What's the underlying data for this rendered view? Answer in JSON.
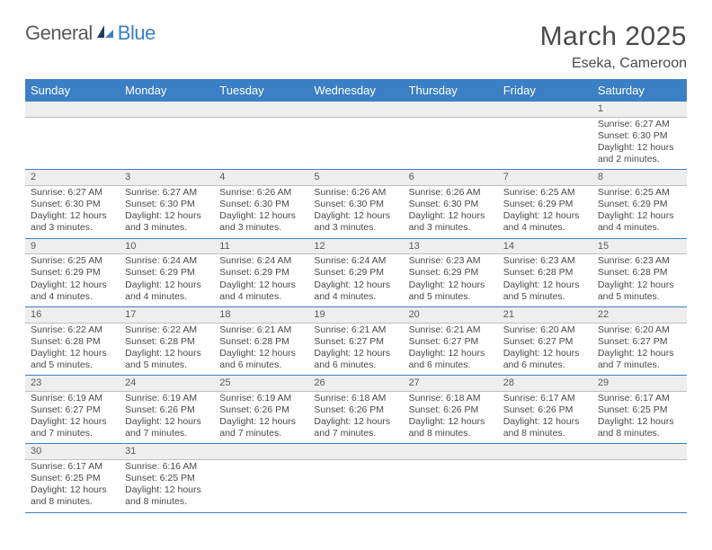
{
  "brand": {
    "general": "General",
    "blue": "Blue"
  },
  "title": "March 2025",
  "location": "Eseka, Cameroon",
  "header_bg": "#3b7fc4",
  "daynum_bg": "#eeeeee",
  "text_color": "#4a4a4a",
  "dayNames": [
    "Sunday",
    "Monday",
    "Tuesday",
    "Wednesday",
    "Thursday",
    "Friday",
    "Saturday"
  ],
  "weeks": [
    [
      null,
      null,
      null,
      null,
      null,
      null,
      {
        "n": "1",
        "sr": "6:27 AM",
        "ss": "6:30 PM",
        "dl": "12 hours and 2 minutes."
      }
    ],
    [
      {
        "n": "2",
        "sr": "6:27 AM",
        "ss": "6:30 PM",
        "dl": "12 hours and 3 minutes."
      },
      {
        "n": "3",
        "sr": "6:27 AM",
        "ss": "6:30 PM",
        "dl": "12 hours and 3 minutes."
      },
      {
        "n": "4",
        "sr": "6:26 AM",
        "ss": "6:30 PM",
        "dl": "12 hours and 3 minutes."
      },
      {
        "n": "5",
        "sr": "6:26 AM",
        "ss": "6:30 PM",
        "dl": "12 hours and 3 minutes."
      },
      {
        "n": "6",
        "sr": "6:26 AM",
        "ss": "6:30 PM",
        "dl": "12 hours and 3 minutes."
      },
      {
        "n": "7",
        "sr": "6:25 AM",
        "ss": "6:29 PM",
        "dl": "12 hours and 4 minutes."
      },
      {
        "n": "8",
        "sr": "6:25 AM",
        "ss": "6:29 PM",
        "dl": "12 hours and 4 minutes."
      }
    ],
    [
      {
        "n": "9",
        "sr": "6:25 AM",
        "ss": "6:29 PM",
        "dl": "12 hours and 4 minutes."
      },
      {
        "n": "10",
        "sr": "6:24 AM",
        "ss": "6:29 PM",
        "dl": "12 hours and 4 minutes."
      },
      {
        "n": "11",
        "sr": "6:24 AM",
        "ss": "6:29 PM",
        "dl": "12 hours and 4 minutes."
      },
      {
        "n": "12",
        "sr": "6:24 AM",
        "ss": "6:29 PM",
        "dl": "12 hours and 4 minutes."
      },
      {
        "n": "13",
        "sr": "6:23 AM",
        "ss": "6:29 PM",
        "dl": "12 hours and 5 minutes."
      },
      {
        "n": "14",
        "sr": "6:23 AM",
        "ss": "6:28 PM",
        "dl": "12 hours and 5 minutes."
      },
      {
        "n": "15",
        "sr": "6:23 AM",
        "ss": "6:28 PM",
        "dl": "12 hours and 5 minutes."
      }
    ],
    [
      {
        "n": "16",
        "sr": "6:22 AM",
        "ss": "6:28 PM",
        "dl": "12 hours and 5 minutes."
      },
      {
        "n": "17",
        "sr": "6:22 AM",
        "ss": "6:28 PM",
        "dl": "12 hours and 5 minutes."
      },
      {
        "n": "18",
        "sr": "6:21 AM",
        "ss": "6:28 PM",
        "dl": "12 hours and 6 minutes."
      },
      {
        "n": "19",
        "sr": "6:21 AM",
        "ss": "6:27 PM",
        "dl": "12 hours and 6 minutes."
      },
      {
        "n": "20",
        "sr": "6:21 AM",
        "ss": "6:27 PM",
        "dl": "12 hours and 6 minutes."
      },
      {
        "n": "21",
        "sr": "6:20 AM",
        "ss": "6:27 PM",
        "dl": "12 hours and 6 minutes."
      },
      {
        "n": "22",
        "sr": "6:20 AM",
        "ss": "6:27 PM",
        "dl": "12 hours and 7 minutes."
      }
    ],
    [
      {
        "n": "23",
        "sr": "6:19 AM",
        "ss": "6:27 PM",
        "dl": "12 hours and 7 minutes."
      },
      {
        "n": "24",
        "sr": "6:19 AM",
        "ss": "6:26 PM",
        "dl": "12 hours and 7 minutes."
      },
      {
        "n": "25",
        "sr": "6:19 AM",
        "ss": "6:26 PM",
        "dl": "12 hours and 7 minutes."
      },
      {
        "n": "26",
        "sr": "6:18 AM",
        "ss": "6:26 PM",
        "dl": "12 hours and 7 minutes."
      },
      {
        "n": "27",
        "sr": "6:18 AM",
        "ss": "6:26 PM",
        "dl": "12 hours and 8 minutes."
      },
      {
        "n": "28",
        "sr": "6:17 AM",
        "ss": "6:26 PM",
        "dl": "12 hours and 8 minutes."
      },
      {
        "n": "29",
        "sr": "6:17 AM",
        "ss": "6:25 PM",
        "dl": "12 hours and 8 minutes."
      }
    ],
    [
      {
        "n": "30",
        "sr": "6:17 AM",
        "ss": "6:25 PM",
        "dl": "12 hours and 8 minutes."
      },
      {
        "n": "31",
        "sr": "6:16 AM",
        "ss": "6:25 PM",
        "dl": "12 hours and 8 minutes."
      },
      null,
      null,
      null,
      null,
      null
    ]
  ],
  "labels": {
    "sunrise": "Sunrise:",
    "sunset": "Sunset:",
    "daylight": "Daylight:"
  }
}
